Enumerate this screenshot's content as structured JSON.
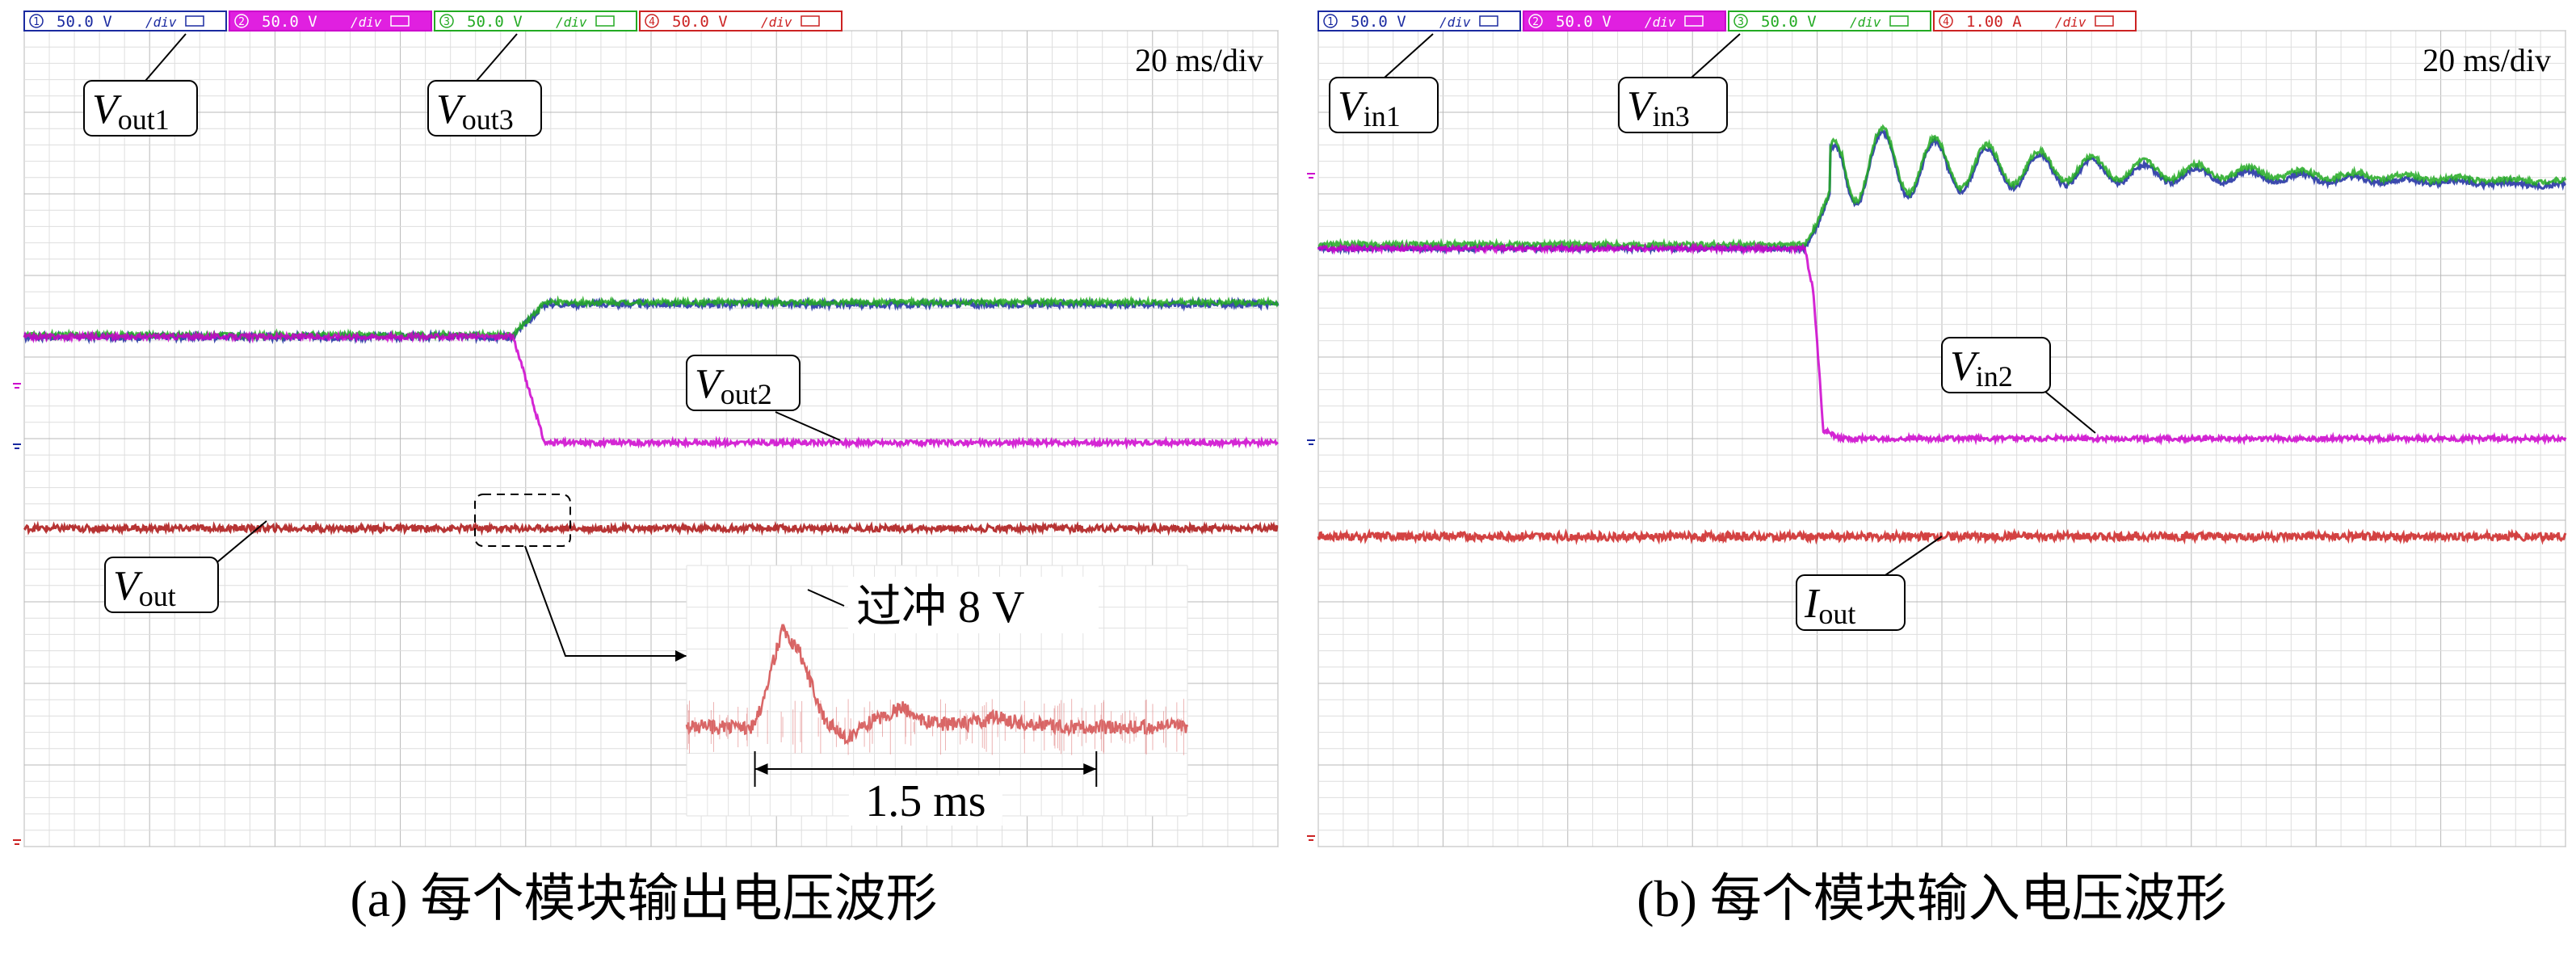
{
  "chart_data": [
    {
      "panel": "a",
      "type": "line",
      "caption": "(a) 每个模块输出电压波形",
      "timebase": "20 ms/div",
      "channels": [
        {
          "id": "1",
          "scale": "50.0 V",
          "unit": "/div",
          "color": "#1a2aa0"
        },
        {
          "id": "2",
          "scale": "50.0 V",
          "unit": "/div",
          "color": "#cc00cc"
        },
        {
          "id": "3",
          "scale": "50.0 V",
          "unit": "/div",
          "color": "#22aa22"
        },
        {
          "id": "4",
          "scale": "50.0 V",
          "unit": "/div",
          "color": "#cc2222"
        }
      ],
      "grid": {
        "divisions_x": 10,
        "divisions_y": 10,
        "minor_per_div": 5,
        "on": true
      },
      "xlim_div": [
        0,
        10
      ],
      "ylim_div": [
        0,
        10
      ],
      "series": [
        {
          "name": "V_out1",
          "channel": "1",
          "color": "#1a2aa0",
          "x_div": [
            0,
            3.9,
            4.15,
            10
          ],
          "y_div": [
            6.25,
            6.25,
            6.65,
            6.65
          ],
          "noise": 0.04
        },
        {
          "name": "V_out3",
          "channel": "3",
          "color": "#22aa22",
          "x_div": [
            0,
            3.9,
            4.15,
            10
          ],
          "y_div": [
            6.27,
            6.27,
            6.67,
            6.67
          ],
          "noise": 0.03
        },
        {
          "name": "V_out2",
          "channel": "2",
          "color": "#cc00cc",
          "x_div": [
            0,
            3.9,
            4.15,
            10
          ],
          "y_div": [
            6.25,
            6.25,
            4.95,
            4.95
          ],
          "noise": 0.03
        },
        {
          "name": "V_out",
          "channel": "4",
          "color": "#aa1111",
          "x_div": [
            0,
            10
          ],
          "y_div": [
            3.9,
            3.9
          ],
          "noise": 0.04
        }
      ],
      "labels": [
        {
          "main": "V",
          "sub": "out1"
        },
        {
          "main": "V",
          "sub": "out3"
        },
        {
          "main": "V",
          "sub": "out2"
        },
        {
          "main": "V",
          "sub": "out"
        }
      ],
      "inset": {
        "annotation": "过冲 8 V",
        "span_label": "1.5 ms",
        "series": {
          "color": "#cc3333",
          "t_ms": [
            0,
            0.3,
            0.42,
            0.5,
            0.6,
            0.7,
            0.8,
            0.95,
            1.05,
            1.2,
            1.35,
            1.5,
            1.7,
            2.0,
            2.2
          ],
          "v_rel": [
            0,
            0,
            1.0,
            0.75,
            0.1,
            -0.12,
            0.05,
            0.2,
            0.05,
            0.02,
            0.1,
            0.03,
            0.0,
            0.0,
            0.0
          ]
        }
      }
    },
    {
      "panel": "b",
      "type": "line",
      "caption": "(b) 每个模块输入电压波形",
      "timebase": "20 ms/div",
      "channels": [
        {
          "id": "1",
          "scale": "50.0 V",
          "unit": "/div",
          "color": "#1a2aa0"
        },
        {
          "id": "2",
          "scale": "50.0 V",
          "unit": "/div",
          "color": "#cc00cc"
        },
        {
          "id": "3",
          "scale": "50.0 V",
          "unit": "/div",
          "color": "#22aa22"
        },
        {
          "id": "4",
          "scale": "1.00 A",
          "unit": "/div",
          "color": "#cc2222"
        }
      ],
      "grid": {
        "divisions_x": 10,
        "divisions_y": 10,
        "minor_per_div": 5,
        "on": true
      },
      "xlim_div": [
        0,
        10
      ],
      "ylim_div": [
        0,
        10
      ],
      "series": [
        {
          "name": "V_in1",
          "channel": "1",
          "color": "#1a2aa0",
          "osc": true,
          "x_div": [
            0,
            3.9,
            4.0,
            4.2,
            10
          ],
          "y_div": [
            7.33,
            7.33,
            7.6,
            8.35,
            8.1
          ],
          "noise": 0.03
        },
        {
          "name": "V_in3",
          "channel": "3",
          "color": "#22aa22",
          "osc": true,
          "x_div": [
            0,
            3.9,
            4.0,
            4.2,
            10
          ],
          "y_div": [
            7.38,
            7.38,
            7.65,
            8.4,
            8.15
          ],
          "noise": 0.03
        },
        {
          "name": "V_in2",
          "channel": "2",
          "color": "#cc00cc",
          "x_div": [
            0,
            3.9,
            3.97,
            4.05,
            4.2,
            10
          ],
          "y_div": [
            7.33,
            7.33,
            6.8,
            5.1,
            5.0,
            5.0
          ],
          "noise": 0.03
        },
        {
          "name": "I_out",
          "channel": "4",
          "color": "#cc2222",
          "x_div": [
            0,
            10
          ],
          "y_div": [
            3.8,
            3.8
          ],
          "noise": 0.05
        }
      ],
      "labels": [
        {
          "main": "V",
          "sub": "in1"
        },
        {
          "main": "V",
          "sub": "in3"
        },
        {
          "main": "V",
          "sub": "in2"
        },
        {
          "main": "I",
          "sub": "out"
        }
      ]
    }
  ]
}
